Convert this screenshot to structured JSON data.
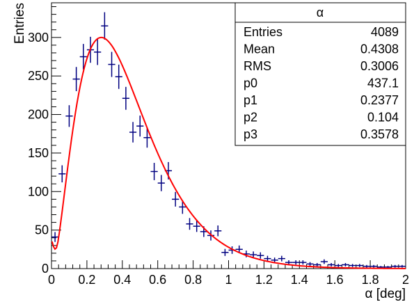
{
  "chart_data": {
    "type": "scatter",
    "title": "",
    "xlabel": "α [deg]",
    "ylabel": "Entries",
    "xlim": [
      0,
      2
    ],
    "ylim": [
      0,
      345
    ],
    "x_ticks": [
      0,
      0.2,
      0.4,
      0.6,
      0.8,
      1,
      1.2,
      1.4,
      1.6,
      1.8,
      2
    ],
    "x_tick_labels": [
      "0",
      "0.2",
      "0.4",
      "0.6",
      "0.8",
      "1",
      "1.2",
      "1.4",
      "1.6",
      "1.8",
      "2"
    ],
    "y_ticks": [
      0,
      50,
      100,
      150,
      200,
      250,
      300
    ],
    "y_tick_labels": [
      "0",
      "50",
      "100",
      "150",
      "200",
      "250",
      "300"
    ],
    "grid": false,
    "colors": {
      "points": "#000080",
      "fit": "#ff0000"
    },
    "histogram": {
      "bin_width": 0.04,
      "x": [
        0.02,
        0.06,
        0.1,
        0.14,
        0.18,
        0.22,
        0.26,
        0.3,
        0.34,
        0.38,
        0.42,
        0.46,
        0.5,
        0.54,
        0.58,
        0.62,
        0.66,
        0.7,
        0.74,
        0.78,
        0.82,
        0.86,
        0.9,
        0.94,
        0.98,
        1.02,
        1.06,
        1.1,
        1.14,
        1.18,
        1.22,
        1.26,
        1.3,
        1.34,
        1.38,
        1.42,
        1.46,
        1.5,
        1.54,
        1.58,
        1.62,
        1.66,
        1.7,
        1.74,
        1.78,
        1.82,
        1.86,
        1.9,
        1.94,
        1.98
      ],
      "y": [
        41,
        123,
        198,
        246,
        275,
        284,
        281,
        315,
        265,
        249,
        221,
        177,
        185,
        170,
        126,
        111,
        127,
        90,
        80,
        58,
        55,
        48,
        43,
        49,
        21,
        24,
        25,
        19,
        18,
        17,
        13,
        11,
        13,
        8,
        8,
        8,
        6,
        5,
        9,
        5,
        4,
        5,
        4,
        4,
        3,
        3,
        2,
        2,
        3,
        3
      ]
    },
    "fit_params": {
      "p0": 437.1,
      "p1": 0.2377,
      "p2": 0.104,
      "p3": 0.3578
    }
  },
  "stats_box": {
    "title": "α",
    "rows": [
      {
        "label": "Entries",
        "value": "4089"
      },
      {
        "label": "Mean",
        "value": "0.4308"
      },
      {
        "label": "RMS",
        "value": "0.3006"
      },
      {
        "label": "p0",
        "value": "437.1"
      },
      {
        "label": "p1",
        "value": "0.2377"
      },
      {
        "label": "p2",
        "value": "0.104"
      },
      {
        "label": "p3",
        "value": "0.3578"
      }
    ]
  }
}
